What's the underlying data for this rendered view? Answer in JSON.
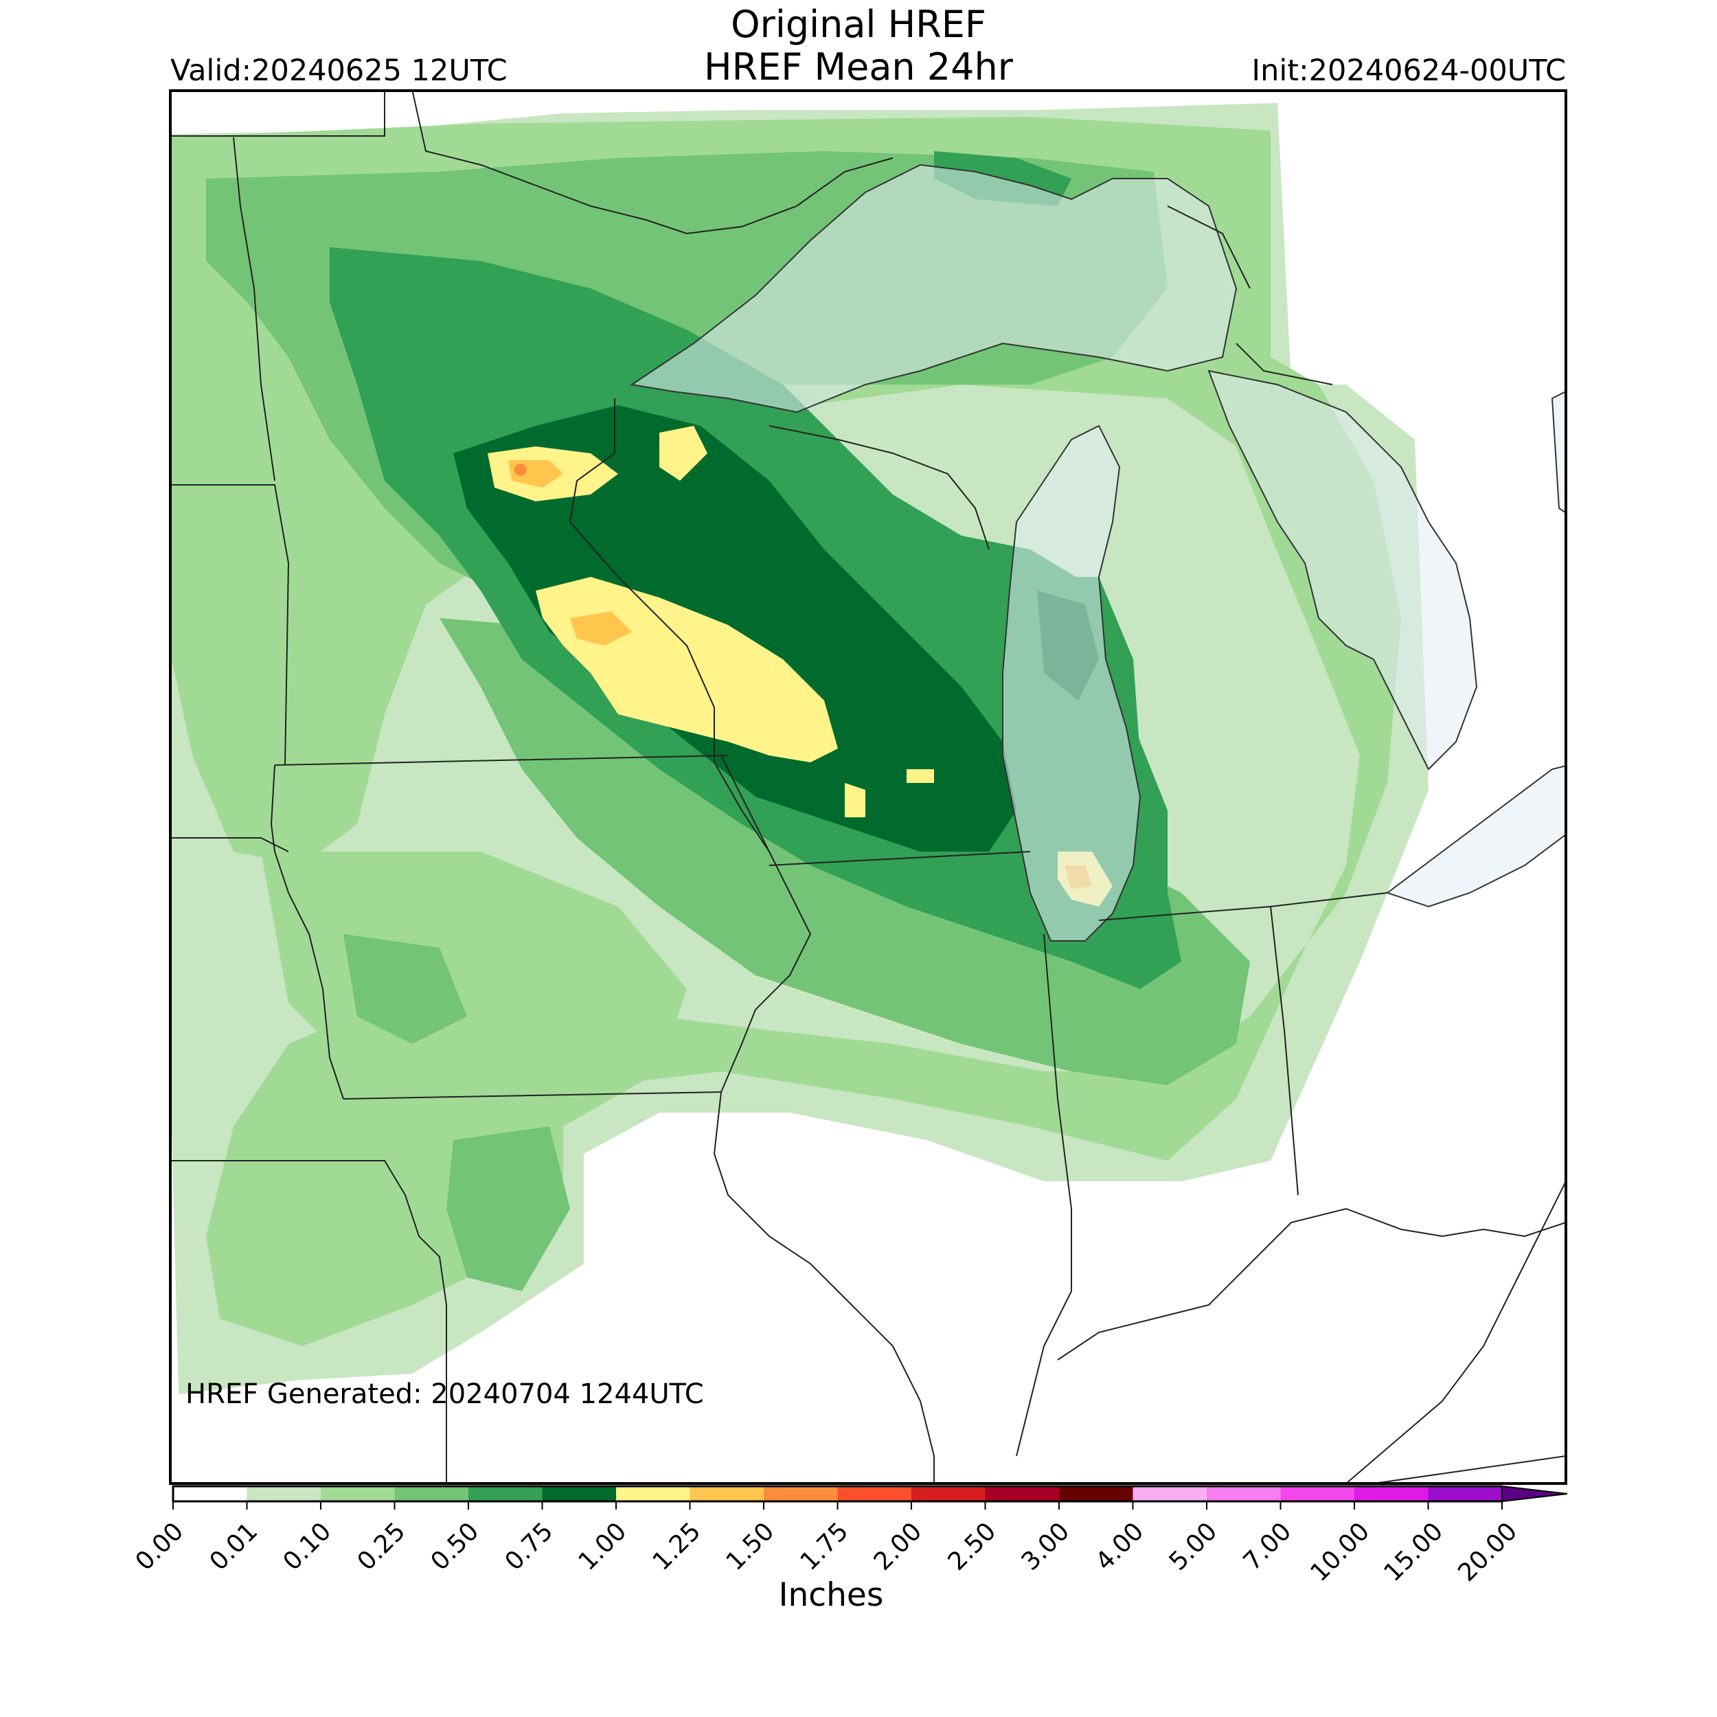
{
  "header": {
    "title_line1": "Original HREF",
    "title_line2": "HREF Mean 24hr",
    "valid": "Valid:20240625 12UTC",
    "init": "Init:20240624-00UTC"
  },
  "footer": {
    "generated": "HREF Generated: 20240704 1244UTC"
  },
  "colorbar": {
    "units_label": "Inches",
    "ticks": [
      "0.00",
      "0.01",
      "0.10",
      "0.25",
      "0.50",
      "0.75",
      "1.00",
      "1.25",
      "1.50",
      "1.75",
      "2.00",
      "2.50",
      "3.00",
      "4.00",
      "5.00",
      "7.00",
      "10.00",
      "15.00",
      "20.00"
    ],
    "colors": [
      "#ffffff",
      "#c7e6c1",
      "#a1da95",
      "#73c476",
      "#32a055",
      "#006b2d",
      "#fff38a",
      "#ffc64d",
      "#fd8d3c",
      "#fb4e2b",
      "#d61f1e",
      "#a90027",
      "#690000",
      "#f9aef4",
      "#f77ef0",
      "#f446ed",
      "#e018e8",
      "#9c0dcd"
    ],
    "extend_color": "#5b0085"
  },
  "map": {
    "region": "Upper Midwest / Great Lakes",
    "lake_color": "#e4ecf5"
  },
  "chart_data": {
    "type": "heatmap",
    "variable": "HREF Mean 24hr precipitation",
    "units": "Inches",
    "levels": [
      0.0,
      0.01,
      0.1,
      0.25,
      0.5,
      0.75,
      1.0,
      1.25,
      1.5,
      1.75,
      2.0,
      2.5,
      3.0,
      4.0,
      5.0,
      7.0,
      10.0,
      15.0,
      20.0
    ],
    "max_category": "1.00-1.25"
  }
}
